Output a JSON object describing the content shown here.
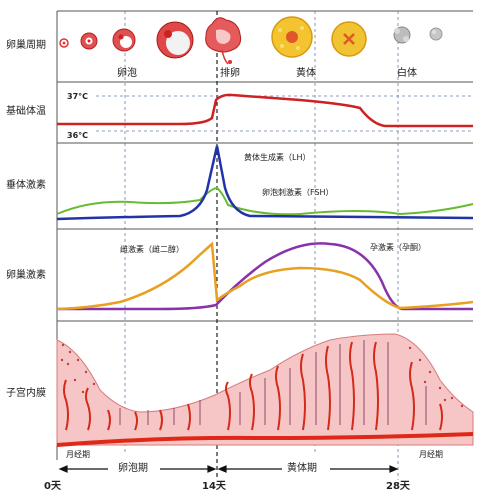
{
  "rows": {
    "ovary_cycle": "卵巢周期",
    "bbt": "基础体温",
    "pituitary": "垂体激素",
    "ovarian_hormones": "卵巢激素",
    "endometrium": "子宫内膜"
  },
  "ovary_stages": {
    "follicle": "卵泡",
    "ovulation": "排卵",
    "corpus_luteum": "黄体",
    "corpus_albicans": "白体"
  },
  "temperature": {
    "high": "37°C",
    "low": "36°C"
  },
  "pituitary_curves": {
    "lh": "黄体生成素（LH）",
    "fsh": "卵泡刺激素（FSH）"
  },
  "ovarian_curves": {
    "estrogen": "雌激素（雌二醇）",
    "progesterone": "孕激素（孕酮）"
  },
  "phases": {
    "menses_start": "月经期",
    "menses_end": "月经期",
    "follicular": "卵泡期",
    "luteal": "黄体期"
  },
  "days": {
    "day0": "0天",
    "day14": "14天",
    "day28": "28天"
  },
  "colors": {
    "bbt": "#cc2222",
    "lh": "#2233aa",
    "fsh": "#66bb33",
    "estrogen": "#e8a020",
    "progesterone": "#8833aa",
    "endometrium_fill": "#f6c6c6",
    "vessel": "#d42a1a",
    "grid": "#6a7fb0"
  }
}
